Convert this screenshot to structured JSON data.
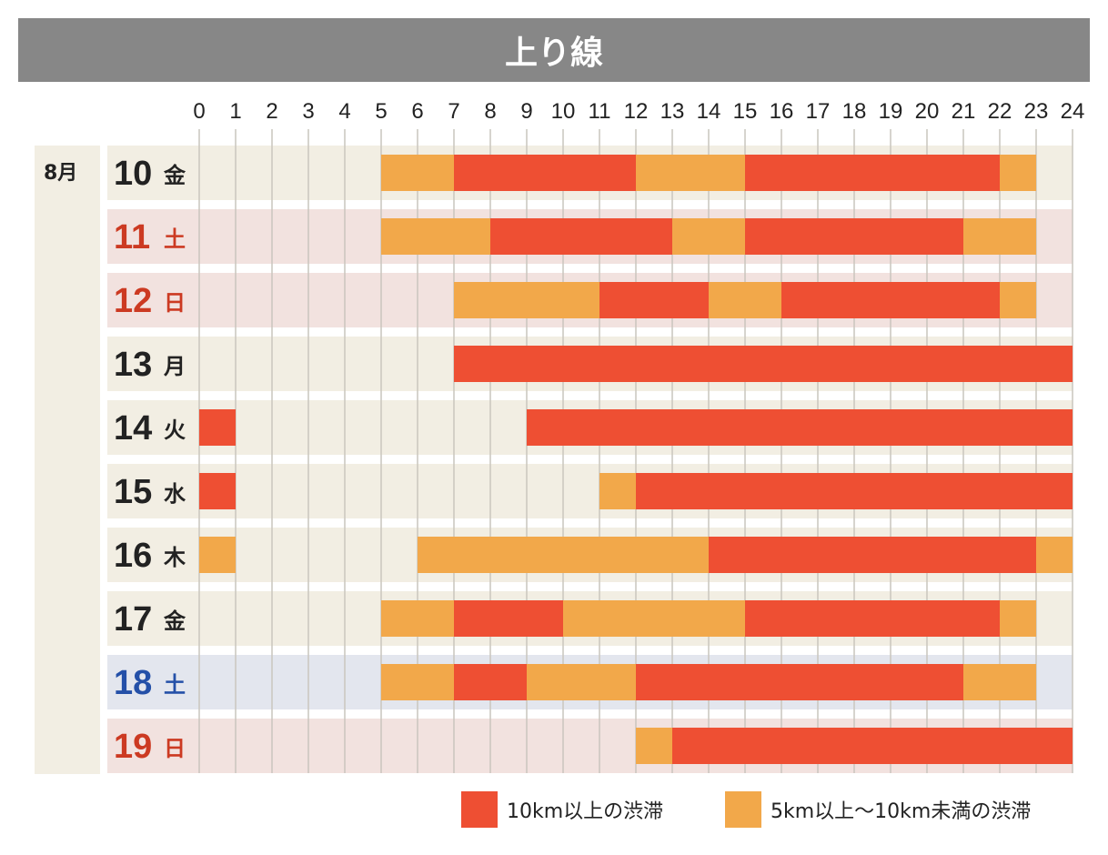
{
  "title": "上り線",
  "month_label": "8月",
  "colors": {
    "heavy": "#ee4f33",
    "light": "#f2a84a",
    "weekday_bg": "#f2eee3",
    "saturday_bg": "#e3e6ee",
    "sunday_bg": "#f2e2df",
    "grid": "#c9c5be"
  },
  "legend": {
    "heavy": "10km以上の渋滞",
    "light": "5km以上〜10km未満の渋滞"
  },
  "chart_data": {
    "type": "bar",
    "x_ticks": [
      "0",
      "1",
      "2",
      "3",
      "4",
      "5",
      "6",
      "7",
      "8",
      "9",
      "10",
      "11",
      "12",
      "13",
      "14",
      "15",
      "16",
      "17",
      "18",
      "19",
      "20",
      "21",
      "22",
      "23",
      "24"
    ],
    "xlim": [
      0,
      24
    ],
    "rows": [
      {
        "day": "10",
        "weekday": "金",
        "kind": "weekday",
        "segments": [
          [
            5,
            7,
            "light"
          ],
          [
            7,
            12,
            "heavy"
          ],
          [
            12,
            15,
            "light"
          ],
          [
            15,
            22,
            "heavy"
          ],
          [
            22,
            23,
            "light"
          ]
        ]
      },
      {
        "day": "11",
        "weekday": "土",
        "kind": "holiday",
        "segments": [
          [
            5,
            8,
            "light"
          ],
          [
            8,
            13,
            "heavy"
          ],
          [
            13,
            15,
            "light"
          ],
          [
            15,
            21,
            "heavy"
          ],
          [
            21,
            23,
            "light"
          ]
        ]
      },
      {
        "day": "12",
        "weekday": "日",
        "kind": "sunday",
        "segments": [
          [
            7,
            11,
            "light"
          ],
          [
            11,
            14,
            "heavy"
          ],
          [
            14,
            16,
            "light"
          ],
          [
            16,
            22,
            "heavy"
          ],
          [
            22,
            23,
            "light"
          ]
        ]
      },
      {
        "day": "13",
        "weekday": "月",
        "kind": "weekday",
        "segments": [
          [
            7,
            24,
            "heavy"
          ]
        ]
      },
      {
        "day": "14",
        "weekday": "火",
        "kind": "weekday",
        "segments": [
          [
            0,
            1,
            "heavy"
          ],
          [
            9,
            24,
            "heavy"
          ]
        ]
      },
      {
        "day": "15",
        "weekday": "水",
        "kind": "weekday",
        "segments": [
          [
            0,
            1,
            "heavy"
          ],
          [
            11,
            12,
            "light"
          ],
          [
            12,
            24,
            "heavy"
          ]
        ]
      },
      {
        "day": "16",
        "weekday": "木",
        "kind": "weekday",
        "segments": [
          [
            0,
            1,
            "light"
          ],
          [
            6,
            14,
            "light"
          ],
          [
            14,
            23,
            "heavy"
          ],
          [
            23,
            24,
            "light"
          ]
        ]
      },
      {
        "day": "17",
        "weekday": "金",
        "kind": "weekday",
        "segments": [
          [
            5,
            7,
            "light"
          ],
          [
            7,
            10,
            "heavy"
          ],
          [
            10,
            15,
            "light"
          ],
          [
            15,
            22,
            "heavy"
          ],
          [
            22,
            23,
            "light"
          ]
        ]
      },
      {
        "day": "18",
        "weekday": "土",
        "kind": "saturday",
        "segments": [
          [
            5,
            7,
            "light"
          ],
          [
            7,
            9,
            "heavy"
          ],
          [
            9,
            12,
            "light"
          ],
          [
            12,
            21,
            "heavy"
          ],
          [
            21,
            23,
            "light"
          ]
        ]
      },
      {
        "day": "19",
        "weekday": "日",
        "kind": "sunday",
        "segments": [
          [
            12,
            13,
            "light"
          ],
          [
            13,
            24,
            "heavy"
          ]
        ]
      }
    ]
  }
}
